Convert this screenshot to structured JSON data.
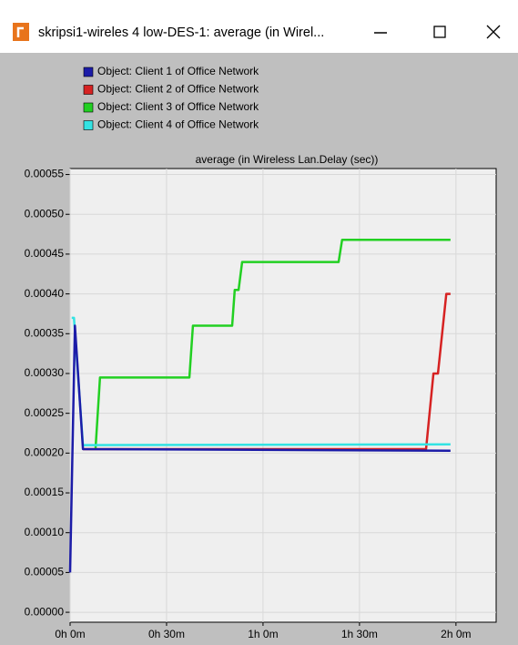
{
  "window": {
    "title": "skripsi1-wireles 4  low-DES-1: average (in Wirel..."
  },
  "chart_data": {
    "type": "line",
    "title": "average (in Wireless Lan.Delay (sec))",
    "x": [],
    "series": [
      {
        "name": "Object: Client 1 of Office Network",
        "color": "#1c1ca8",
        "x": [
          0,
          1.5,
          4,
          118.3
        ],
        "values": [
          5e-05,
          0.00036,
          0.000205,
          0.000203
        ]
      },
      {
        "name": "Object: Client 2 of Office Network",
        "color": "#d62222",
        "x": [
          4,
          110.7,
          113,
          114.4,
          117,
          118.3
        ],
        "values": [
          0.000205,
          0.000205,
          0.0003,
          0.0003,
          0.0004,
          0.0004
        ]
      },
      {
        "name": "Object: Client 3 of Office Network",
        "color": "#22d022",
        "x": [
          7.9,
          9.3,
          37.1,
          38.2,
          50.4,
          51.2,
          52.4,
          53.5,
          83.5,
          84.6,
          118.3
        ],
        "values": [
          0.000205,
          0.000295,
          0.000295,
          0.00036,
          0.00036,
          0.000405,
          0.000405,
          0.00044,
          0.00044,
          0.000468,
          0.000468
        ]
      },
      {
        "name": "Object: Client 4 of Office Network",
        "color": "#33e3e3",
        "x": [
          0.5,
          1.2,
          4,
          118.3
        ],
        "values": [
          0.00037,
          0.00037,
          0.00021,
          0.000211
        ]
      }
    ],
    "xlim": [
      0,
      132.5
    ],
    "xticks": [
      {
        "value": 0,
        "label": "0h 0m"
      },
      {
        "value": 30,
        "label": "0h 30m"
      },
      {
        "value": 60,
        "label": "1h 0m"
      },
      {
        "value": 90,
        "label": "1h 30m"
      },
      {
        "value": 120,
        "label": "2h 0m"
      }
    ],
    "ylim": [
      -1.25e-05,
      0.0005575
    ],
    "yticks": [
      {
        "value": 0,
        "label": "0.00000"
      },
      5e-05,
      {
        "value": 0.0001,
        "label": "0.00010"
      },
      0.00015,
      {
        "value": 0.0002,
        "label": "0.00020"
      },
      0.00025,
      {
        "value": 0.0003,
        "label": "0.00030"
      },
      0.00035,
      {
        "value": 0.0004,
        "label": "0.00040"
      },
      0.00045,
      {
        "value": 0.0005,
        "label": "0.00050"
      },
      0.00055
    ],
    "grid": true
  }
}
